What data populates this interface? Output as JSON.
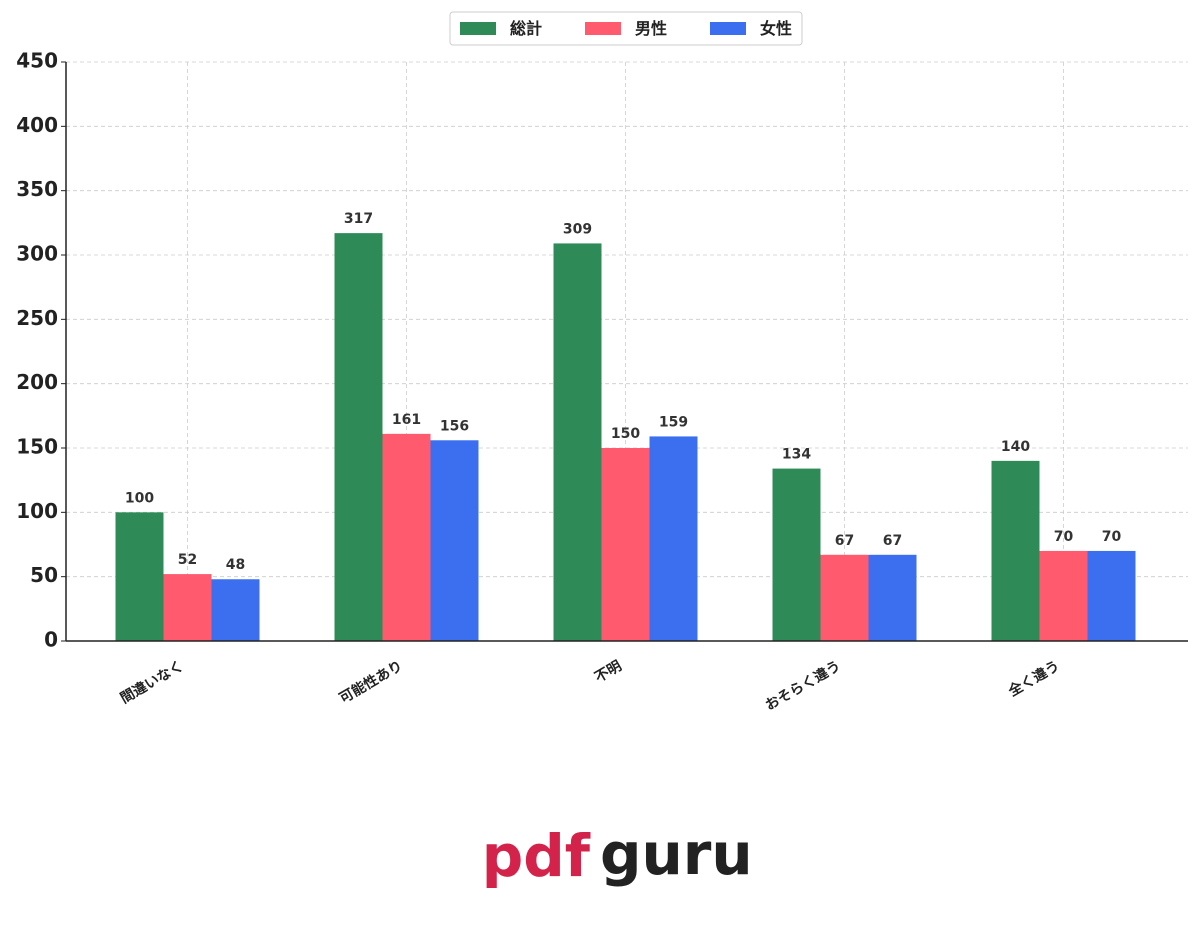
{
  "chart_data": {
    "type": "bar",
    "categories": [
      "間違いなく",
      "可能性あり",
      "不明",
      "おそらく違う",
      "全く違う"
    ],
    "series": [
      {
        "name": "総計",
        "color": "#2e8b57",
        "values": [
          100,
          317,
          309,
          134,
          140
        ]
      },
      {
        "name": "男性",
        "color": "#ff5a6e",
        "values": [
          52,
          161,
          150,
          67,
          70
        ]
      },
      {
        "name": "女性",
        "color": "#3b6ff0",
        "values": [
          48,
          156,
          159,
          67,
          70
        ]
      }
    ],
    "ylim": [
      0,
      450
    ],
    "yticks": [
      0,
      50,
      100,
      150,
      200,
      250,
      300,
      350,
      400,
      450
    ],
    "grid": true,
    "legend": "upper center"
  },
  "watermark": {
    "left": "pdf",
    "right": "guru"
  }
}
